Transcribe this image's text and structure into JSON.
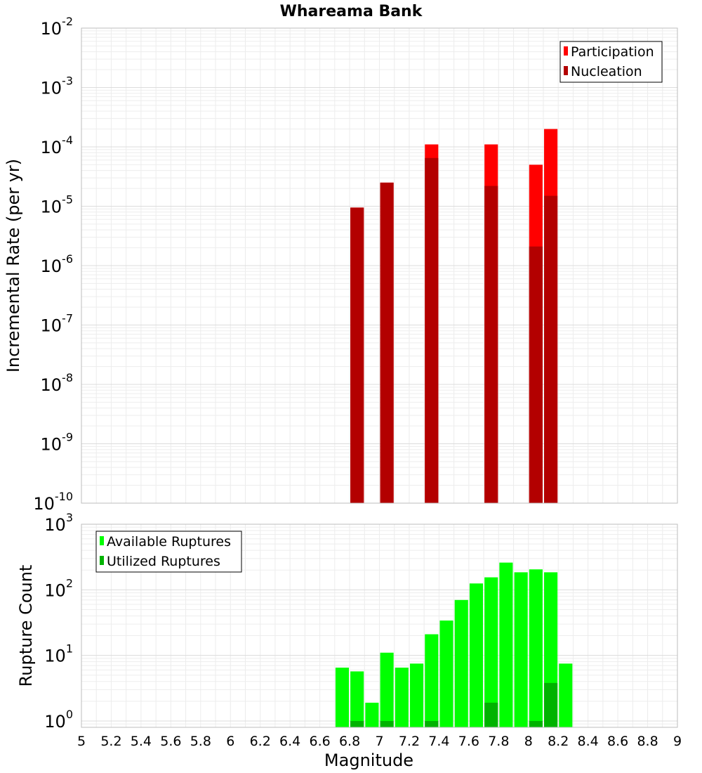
{
  "chart_data": [
    {
      "type": "bar",
      "title": "Whareama Bank",
      "xlabel": "",
      "ylabel": "Incremental Rate (per yr)",
      "yscale": "log",
      "ylim": [
        1e-10,
        0.01
      ],
      "xlim": [
        5,
        9
      ],
      "grid": true,
      "legend_placement": "top-right",
      "y_tick_labels": [
        {
          "base": "10",
          "exp": "-10"
        },
        {
          "base": "10",
          "exp": "-9"
        },
        {
          "base": "10",
          "exp": "-8"
        },
        {
          "base": "10",
          "exp": "-7"
        },
        {
          "base": "10",
          "exp": "-6"
        },
        {
          "base": "10",
          "exp": "-5"
        },
        {
          "base": "10",
          "exp": "-4"
        },
        {
          "base": "10",
          "exp": "-3"
        },
        {
          "base": "10",
          "exp": "-2"
        }
      ],
      "series": [
        {
          "name": "Participation",
          "color": "#ff0000",
          "points": [
            [
              6.85,
              9.5e-06
            ],
            [
              7.05,
              2.5e-05
            ],
            [
              7.35,
              0.00011
            ],
            [
              7.75,
              0.00011
            ],
            [
              8.05,
              5e-05
            ],
            [
              8.15,
              0.0002
            ]
          ]
        },
        {
          "name": "Nucleation",
          "color": "#b30000",
          "points": [
            [
              6.85,
              9.5e-06
            ],
            [
              7.05,
              2.5e-05
            ],
            [
              7.35,
              6.5e-05
            ],
            [
              7.75,
              2.2e-05
            ],
            [
              8.05,
              2.1e-06
            ],
            [
              8.15,
              1.5e-05
            ]
          ]
        }
      ]
    },
    {
      "type": "bar",
      "title": "",
      "xlabel": "Magnitude",
      "ylabel": "Rupture Count",
      "yscale": "log",
      "ylim": [
        0.8,
        1000
      ],
      "xlim": [
        5,
        9
      ],
      "grid": true,
      "legend_placement": "top-left",
      "x_tick_labels": [
        "5",
        "5.2",
        "5.4",
        "5.6",
        "5.8",
        "6",
        "6.2",
        "6.4",
        "6.6",
        "6.8",
        "7",
        "7.2",
        "7.4",
        "7.6",
        "7.8",
        "8",
        "8.2",
        "8.4",
        "8.6",
        "8.8",
        "9"
      ],
      "y_tick_labels": [
        {
          "base": "10",
          "exp": "0"
        },
        {
          "base": "10",
          "exp": "1"
        },
        {
          "base": "10",
          "exp": "2"
        },
        {
          "base": "10",
          "exp": "3"
        }
      ],
      "series": [
        {
          "name": "Available Ruptures",
          "color": "#00ff00",
          "points": [
            [
              6.75,
              6.5
            ],
            [
              6.85,
              5.7
            ],
            [
              6.95,
              1.9
            ],
            [
              7.05,
              11
            ],
            [
              7.15,
              6.5
            ],
            [
              7.25,
              7.5
            ],
            [
              7.35,
              21
            ],
            [
              7.45,
              34
            ],
            [
              7.55,
              70
            ],
            [
              7.65,
              125
            ],
            [
              7.75,
              155
            ],
            [
              7.85,
              260
            ],
            [
              7.95,
              185
            ],
            [
              8.05,
              205
            ],
            [
              8.15,
              185
            ],
            [
              8.25,
              7.5
            ]
          ]
        },
        {
          "name": "Utilized Ruptures",
          "color": "#00b300",
          "points": [
            [
              6.85,
              1
            ],
            [
              7.05,
              1
            ],
            [
              7.35,
              1
            ],
            [
              7.75,
              1.9
            ],
            [
              8.05,
              1
            ],
            [
              8.15,
              3.8
            ]
          ]
        }
      ]
    }
  ]
}
